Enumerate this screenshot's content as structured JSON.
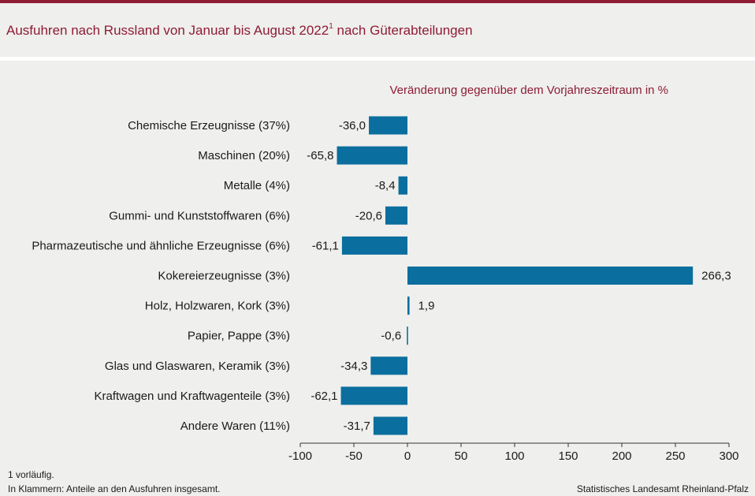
{
  "header": {
    "title_main": "Ausfuhren nach Russland von Januar bis August 2022",
    "title_sup": "1",
    "title_rest": " nach Güterabteilungen"
  },
  "chart_data": {
    "type": "bar",
    "orientation": "horizontal",
    "title": "Ausfuhren nach Russland von Januar bis August 2022¹ nach Güterabteilungen",
    "subtitle": "Veränderung  gegenüber  dem  Vorjahreszeitraum  in %",
    "categories": [
      "Chemische Erzeugnisse (37%)",
      "Maschinen (20%)",
      "Metalle (4%)",
      "Gummi- und Kunststoffwaren (6%)",
      "Pharmazeutische und ähnliche Erzeugnisse (6%)",
      "Kokereierzeugnisse (3%)",
      "Holz, Holzwaren, Kork (3%)",
      "Papier, Pappe (3%)",
      "Glas und Glaswaren, Keramik (3%)",
      "Kraftwagen und Kraftwagenteile (3%)",
      "Andere Waren (11%)"
    ],
    "values": [
      -36.0,
      -65.8,
      -8.4,
      -20.6,
      -61.1,
      266.3,
      1.9,
      -0.6,
      -34.3,
      -62.1,
      -31.7
    ],
    "value_labels": [
      "-36,0",
      "-65,8",
      "-8,4",
      "-20,6",
      "-61,1",
      "266,3",
      "1,9",
      "-0,6",
      "-34,3",
      "-62,1",
      "-31,7"
    ],
    "xlim": [
      -100,
      300
    ],
    "xticks": [
      -100,
      -50,
      0,
      50,
      100,
      150,
      200,
      250,
      300
    ],
    "bar_color": "#0a6e9e",
    "grid": false
  },
  "footer": {
    "note1": "1 vorläufig.",
    "note2": "In Klammern:  Anteile an den Ausfuhren  insgesamt.",
    "source": "Statistisches Landesamt  Rheinland-Pfalz"
  },
  "colors": {
    "accent": "#8e1c35",
    "background": "#efefed"
  }
}
